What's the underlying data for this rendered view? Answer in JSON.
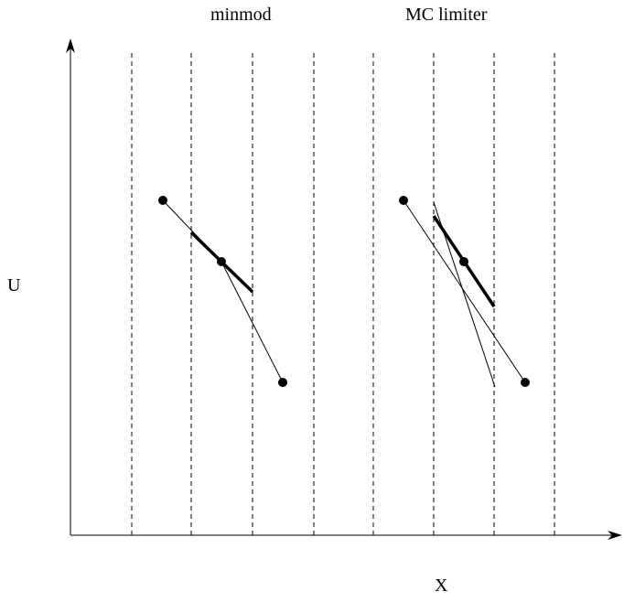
{
  "titles": {
    "left": "minmod",
    "right": "MC limiter"
  },
  "axes": {
    "x_label": "X",
    "y_label": "U"
  },
  "colors": {
    "ink": "#000000",
    "background": "#ffffff"
  }
}
